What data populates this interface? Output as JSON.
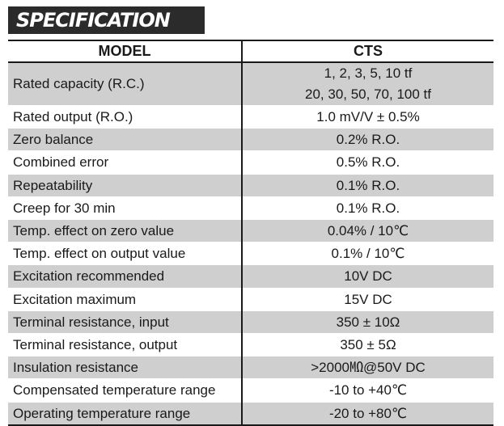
{
  "heading": "SPECIFICATION",
  "table": {
    "header": {
      "model_label": "MODEL",
      "model_value": "CTS"
    },
    "capacity": {
      "label": "Rated capacity (R.C.)",
      "line1": "1, 2, 3, 5, 10 tf",
      "line2": "20, 30, 50, 70, 100 tf"
    },
    "rows": [
      {
        "label": "Rated output (R.O.)",
        "value": "1.0 mV/V ± 0.5%"
      },
      {
        "label": "Zero balance",
        "value": "0.2% R.O."
      },
      {
        "label": "Combined error",
        "value": "0.5% R.O."
      },
      {
        "label": "Repeatability",
        "value": "0.1% R.O."
      },
      {
        "label": "Creep for 30 min",
        "value": "0.1% R.O."
      },
      {
        "label": "Temp. effect on zero value",
        "value": "0.04% / 10℃"
      },
      {
        "label": "Temp. effect on output value",
        "value": "0.1% / 10℃"
      },
      {
        "label": "Excitation recommended",
        "value": "10V DC"
      },
      {
        "label": "Excitation maximum",
        "value": "15V DC"
      },
      {
        "label": "Terminal resistance, input",
        "value": "350 ± 10Ω"
      },
      {
        "label": "Terminal resistance, output",
        "value": "350 ± 5Ω"
      },
      {
        "label": "Insulation resistance",
        "value": ">2000㏁@50V DC"
      },
      {
        "label": "Compensated temperature range",
        "value": "-10 to +40℃"
      },
      {
        "label": "Operating temperature range",
        "value": "-20 to +80℃"
      }
    ]
  },
  "colors": {
    "banner_bg": "#2b2b2b",
    "shaded_row": "#cfcfcf",
    "rule": "#1a1a1a"
  }
}
